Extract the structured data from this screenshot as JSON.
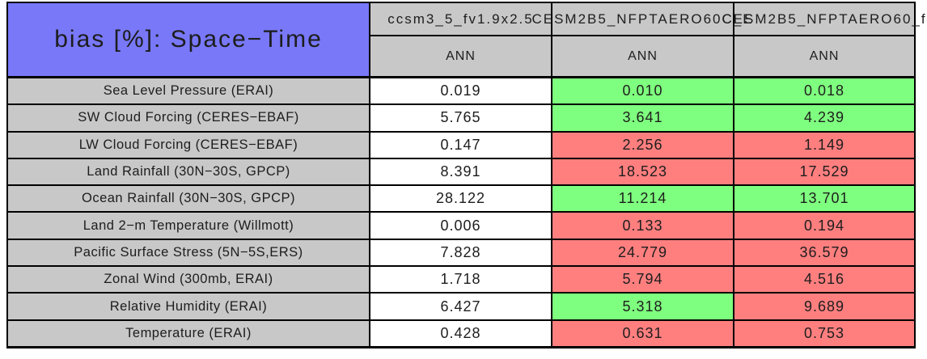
{
  "table": {
    "title": "bias [%]: Space−Time",
    "columns": [
      {
        "model": "ccsm3_5_fv1.9x2.5",
        "season": "ANN"
      },
      {
        "model": "CESM2B5_NFPTAERO60C_E",
        "season": "ANN"
      },
      {
        "model": "CESM2B5_NFPTAERO60_f",
        "season": "ANN"
      }
    ],
    "rows": [
      {
        "label": "Sea Level Pressure (ERAI)",
        "cells": [
          {
            "text": "0.019",
            "color_class": "cell-neutral"
          },
          {
            "text": "0.010",
            "color_class": "cell-good"
          },
          {
            "text": "0.018",
            "color_class": "cell-good"
          }
        ]
      },
      {
        "label": "SW Cloud Forcing (CERES−EBAF)",
        "cells": [
          {
            "text": "5.765",
            "color_class": "cell-neutral"
          },
          {
            "text": "3.641",
            "color_class": "cell-good"
          },
          {
            "text": "4.239",
            "color_class": "cell-good"
          }
        ]
      },
      {
        "label": "LW Cloud Forcing (CERES−EBAF)",
        "cells": [
          {
            "text": "0.147",
            "color_class": "cell-neutral"
          },
          {
            "text": "2.256",
            "color_class": "cell-bad"
          },
          {
            "text": "1.149",
            "color_class": "cell-bad"
          }
        ]
      },
      {
        "label": "Land Rainfall (30N−30S, GPCP)",
        "cells": [
          {
            "text": "8.391",
            "color_class": "cell-neutral"
          },
          {
            "text": "18.523",
            "color_class": "cell-bad"
          },
          {
            "text": "17.529",
            "color_class": "cell-bad"
          }
        ]
      },
      {
        "label": "Ocean Rainfall (30N−30S, GPCP)",
        "cells": [
          {
            "text": "28.122",
            "color_class": "cell-neutral"
          },
          {
            "text": "11.214",
            "color_class": "cell-good"
          },
          {
            "text": "13.701",
            "color_class": "cell-good"
          }
        ]
      },
      {
        "label": "Land 2−m Temperature (Willmott)",
        "cells": [
          {
            "text": "0.006",
            "color_class": "cell-neutral"
          },
          {
            "text": "0.133",
            "color_class": "cell-bad"
          },
          {
            "text": "0.194",
            "color_class": "cell-bad"
          }
        ]
      },
      {
        "label": "Pacific Surface Stress (5N−5S,ERS)",
        "cells": [
          {
            "text": "7.828",
            "color_class": "cell-neutral"
          },
          {
            "text": "24.779",
            "color_class": "cell-bad"
          },
          {
            "text": "36.579",
            "color_class": "cell-bad"
          }
        ]
      },
      {
        "label": "Zonal Wind (300mb, ERAI)",
        "cells": [
          {
            "text": "1.718",
            "color_class": "cell-neutral"
          },
          {
            "text": "5.794",
            "color_class": "cell-bad"
          },
          {
            "text": "4.516",
            "color_class": "cell-bad"
          }
        ]
      },
      {
        "label": "Relative Humidity (ERAI)",
        "cells": [
          {
            "text": "6.427",
            "color_class": "cell-neutral"
          },
          {
            "text": "5.318",
            "color_class": "cell-good"
          },
          {
            "text": "9.689",
            "color_class": "cell-bad"
          }
        ]
      },
      {
        "label": "Temperature (ERAI)",
        "cells": [
          {
            "text": "0.428",
            "color_class": "cell-neutral"
          },
          {
            "text": "0.631",
            "color_class": "cell-bad"
          },
          {
            "text": "0.753",
            "color_class": "cell-bad"
          }
        ]
      }
    ]
  },
  "colors": {
    "title_bg": "#7878f8",
    "header_bg": "#c8c8c8",
    "label_bg": "#c8c8c8",
    "good": "#7fff7f",
    "bad": "#ff7f7f",
    "neutral": "#ffffff",
    "border": "#000000"
  },
  "chart_data": {
    "type": "table",
    "title": "bias [%]: Space−Time",
    "column_models": [
      "ccsm3_5_fv1.9x2.5",
      "CESM2B5_NFPTAERO60C_E",
      "CESM2B5_NFPTAERO60_f"
    ],
    "column_season": "ANN",
    "row_labels": [
      "Sea Level Pressure (ERAI)",
      "SW Cloud Forcing (CERES−EBAF)",
      "LW Cloud Forcing (CERES−EBAF)",
      "Land Rainfall (30N−30S, GPCP)",
      "Ocean Rainfall (30N−30S, GPCP)",
      "Land 2−m Temperature (Willmott)",
      "Pacific Surface Stress (5N−5S,ERS)",
      "Zonal Wind (300mb, ERAI)",
      "Relative Humidity (ERAI)",
      "Temperature (ERAI)"
    ],
    "values": [
      [
        0.019,
        0.01,
        0.018
      ],
      [
        5.765,
        3.641,
        4.239
      ],
      [
        0.147,
        2.256,
        1.149
      ],
      [
        8.391,
        18.523,
        17.529
      ],
      [
        28.122,
        11.214,
        13.701
      ],
      [
        0.006,
        0.133,
        0.194
      ],
      [
        7.828,
        24.779,
        36.579
      ],
      [
        1.718,
        5.794,
        4.516
      ],
      [
        6.427,
        5.318,
        9.689
      ],
      [
        0.428,
        0.631,
        0.753
      ]
    ],
    "cell_colors": [
      [
        "white",
        "green",
        "green"
      ],
      [
        "white",
        "green",
        "green"
      ],
      [
        "white",
        "red",
        "red"
      ],
      [
        "white",
        "red",
        "red"
      ],
      [
        "white",
        "green",
        "green"
      ],
      [
        "white",
        "red",
        "red"
      ],
      [
        "white",
        "red",
        "red"
      ],
      [
        "white",
        "red",
        "red"
      ],
      [
        "white",
        "green",
        "red"
      ],
      [
        "white",
        "red",
        "red"
      ]
    ]
  }
}
